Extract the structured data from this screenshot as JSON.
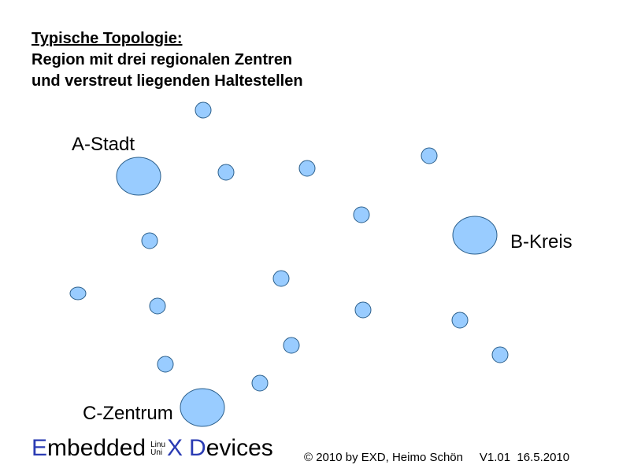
{
  "title": {
    "line1": "Typische Topologie:",
    "line2": "Region mit drei regionalen Zentren",
    "line3": "und verstreut liegenden Haltestellen"
  },
  "centers": [
    {
      "label": "A-Stadt"
    },
    {
      "label": "B-Kreis"
    },
    {
      "label": "C-Zentrum"
    }
  ],
  "node_color": "#99ccff",
  "node_stroke": "#2b5f8c",
  "logo": {
    "e": "E",
    "mbedded": "mbedded",
    "linu": "Linu",
    "uni": "Uni",
    "x": "X",
    "d": "D",
    "evices": "evices",
    "accent_color": "#2a3bb3"
  },
  "footer": {
    "copyright": "© 2010 by EXD, Heimo Schön",
    "version": "V1.01",
    "date": "16.5.2010"
  }
}
